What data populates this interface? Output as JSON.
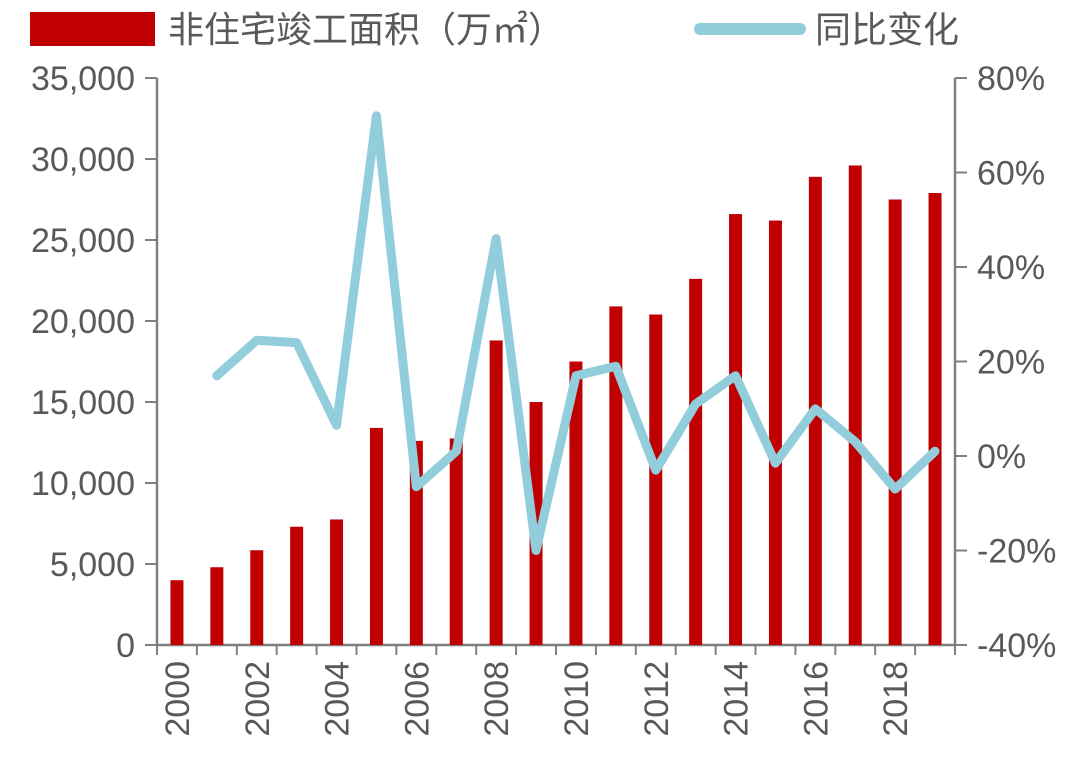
{
  "colors": {
    "bar": "#C00000",
    "line": "#92CDDC",
    "axis": "#7F7F7F",
    "text": "#595959"
  },
  "chart_data": {
    "type": "bar",
    "legend_position": "top",
    "grid": false,
    "categories": [
      "2000",
      "2001",
      "2002",
      "2003",
      "2004",
      "2005",
      "2006",
      "2007",
      "2008",
      "2009",
      "2010",
      "2011",
      "2012",
      "2013",
      "2014",
      "2015",
      "2016",
      "2017",
      "2018",
      "2019"
    ],
    "x_tick_labels": [
      "2000",
      "2002",
      "2004",
      "2006",
      "2008",
      "2010",
      "2012",
      "2014",
      "2016",
      "2018"
    ],
    "series": [
      {
        "name": "非住宅竣工面积（万㎡）",
        "type": "bar",
        "axis": "left",
        "values": [
          4000,
          4800,
          5850,
          7300,
          7750,
          13400,
          12600,
          12750,
          18800,
          15000,
          17500,
          20900,
          20400,
          22600,
          26600,
          26200,
          28900,
          29600,
          27500,
          27900
        ]
      },
      {
        "name": "同比变化",
        "type": "line",
        "axis": "right",
        "values": [
          null,
          0.17,
          0.245,
          0.24,
          0.065,
          0.72,
          -0.065,
          0.01,
          0.46,
          -0.2,
          0.17,
          0.19,
          -0.03,
          0.11,
          0.17,
          -0.015,
          0.1,
          0.03,
          -0.07,
          0.01
        ]
      }
    ],
    "y_left": {
      "lim": [
        0,
        35000
      ],
      "ticks": [
        0,
        5000,
        10000,
        15000,
        20000,
        25000,
        30000,
        35000
      ],
      "tick_labels": [
        "0",
        "5,000",
        "10,000",
        "15,000",
        "20,000",
        "25,000",
        "30,000",
        "35,000"
      ]
    },
    "y_right": {
      "lim": [
        -0.4,
        0.8
      ],
      "ticks": [
        -0.4,
        -0.2,
        0,
        0.2,
        0.4,
        0.6,
        0.8
      ],
      "tick_labels": [
        "-40%",
        "-20%",
        "0%",
        "20%",
        "40%",
        "60%",
        "80%"
      ]
    }
  }
}
